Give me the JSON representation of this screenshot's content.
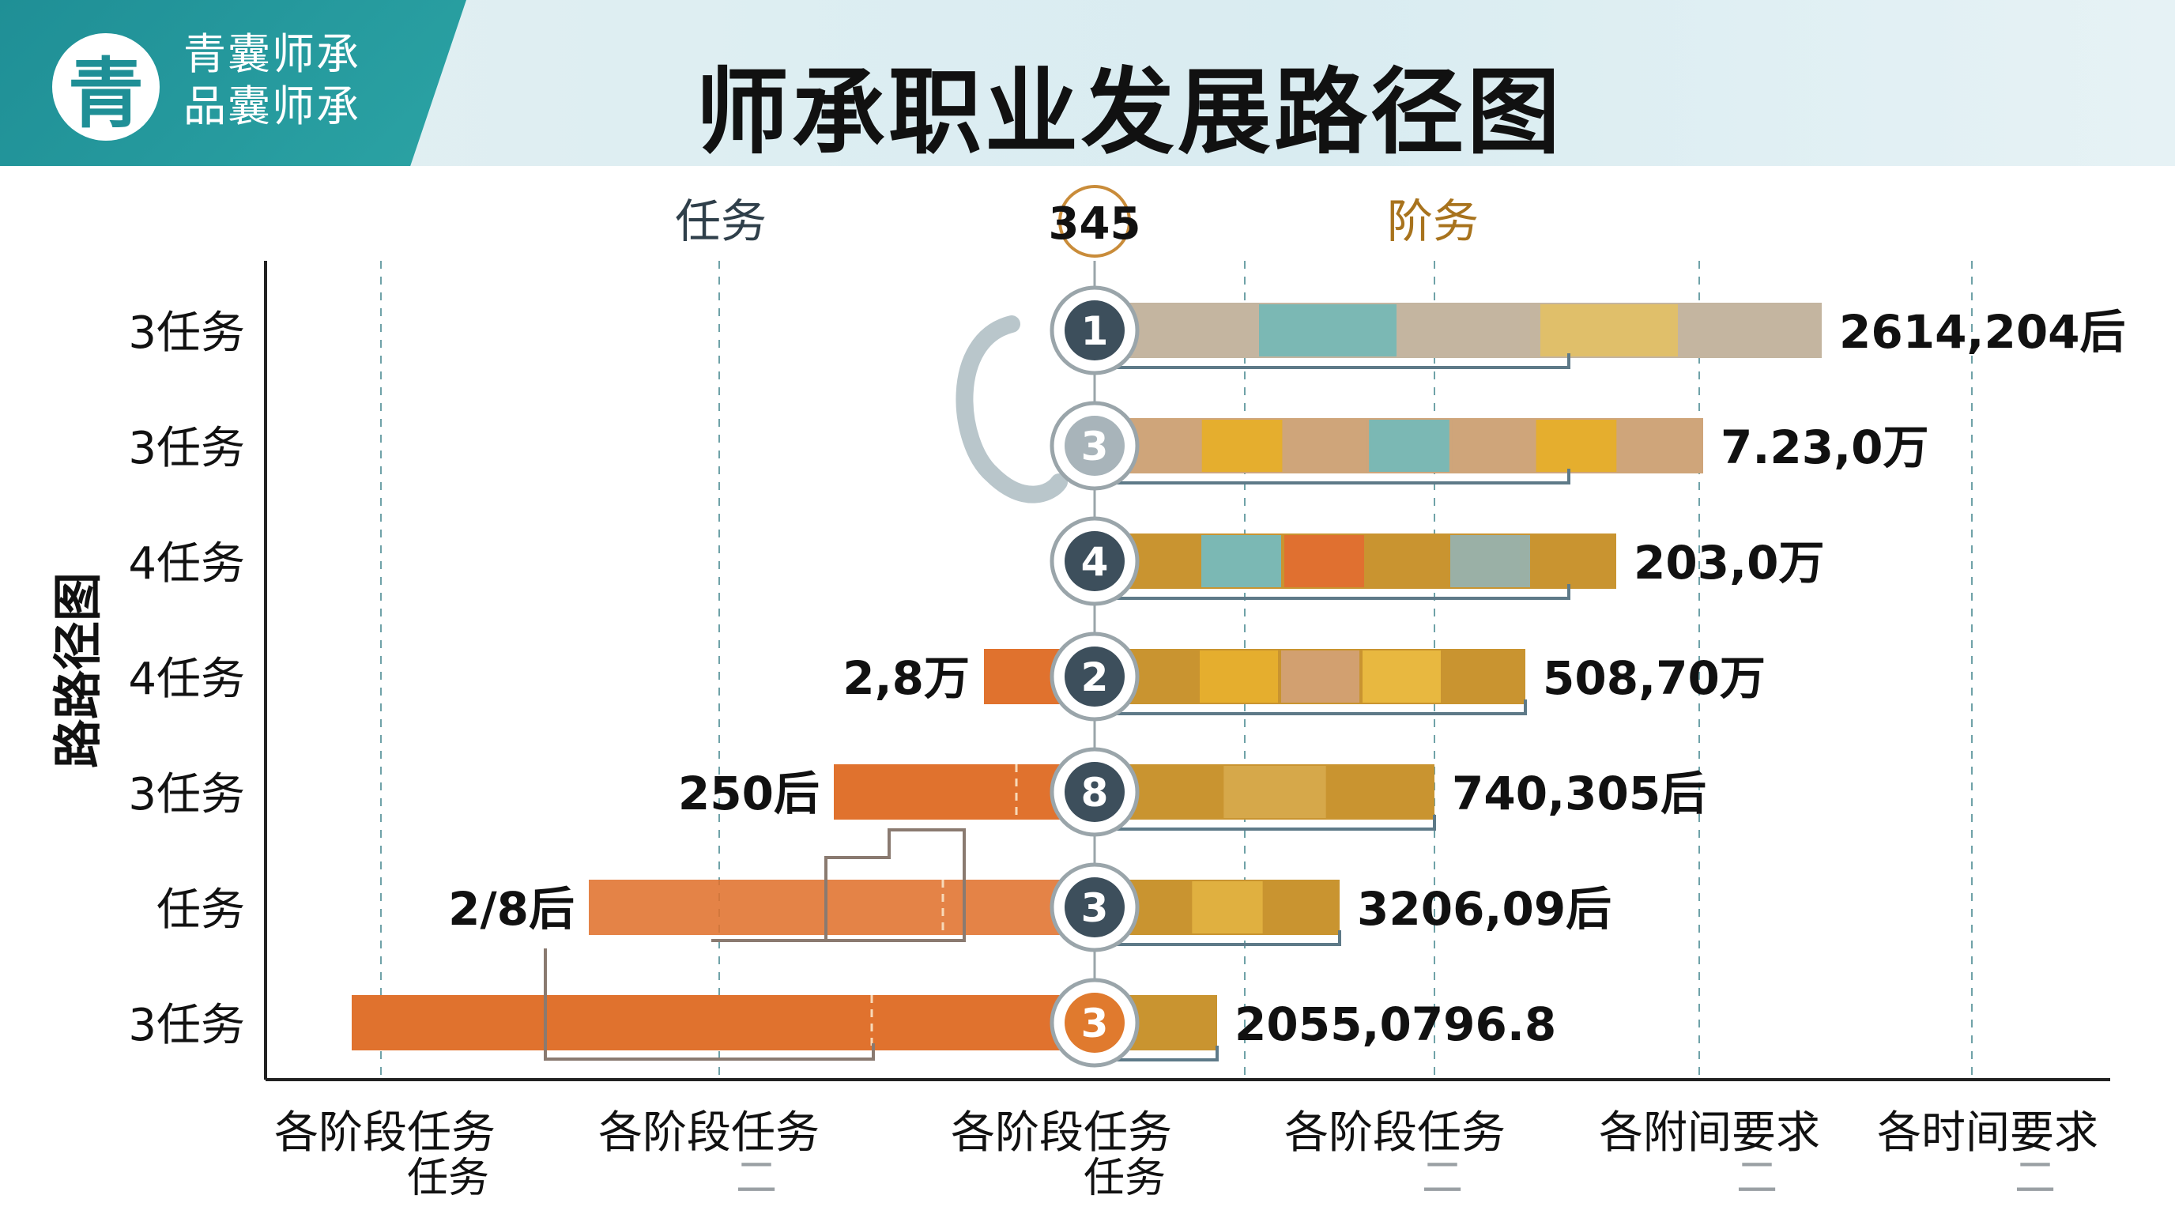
{
  "header": {
    "logo_glyph": "青",
    "brand_line1": "青囊师承",
    "brand_line2": "品囊师承",
    "title": "师承职业发展路径图"
  },
  "chart_data": {
    "type": "bar",
    "orientation": "horizontal-diverging",
    "title": "师承职业发展路径图",
    "ylabel": "路路径图",
    "top_labels": {
      "left": "任务",
      "center": "345",
      "right": "阶务"
    },
    "x_tick_labels": [
      {
        "line1": "各阶段任务",
        "line2": "任务"
      },
      {
        "line1": "各阶段任务",
        "line2": "二"
      },
      {
        "line1": "各阶段任务",
        "line2": "任务"
      },
      {
        "line1": "各阶段任务",
        "line2": "二"
      },
      {
        "line1": "各附间要求",
        "line2": "二"
      },
      {
        "line1": "各时间要求",
        "line2": "二"
      }
    ],
    "grid": "vertical-dashed",
    "rows": [
      {
        "category": "3任务",
        "marker": "1",
        "marker_color": "#3d4f5c",
        "left_value": 0,
        "left_label": "",
        "right_value": 920,
        "right_label": "2614,204后",
        "right_color": "#c4b5a0",
        "segment_colors": [
          "#c4b5a0",
          "#7bb8b4",
          "#c4b5a0",
          "#e0bf6a",
          "#c4b5a0"
        ]
      },
      {
        "category": "3任务",
        "marker": "3",
        "marker_color": "#a8b4ba",
        "left_value": 0,
        "left_label": "",
        "right_value": 770,
        "right_label": "7.23,0万",
        "right_color": "#cfa57a",
        "segment_colors": [
          "#cfa57a",
          "#e5ae2e",
          "#cfa57a",
          "#7bb8b4",
          "#cfa57a",
          "#e5ae2e",
          "#cfa57a"
        ]
      },
      {
        "category": "4任务",
        "marker": "4",
        "marker_color": "#3d4f5c",
        "left_value": 0,
        "left_label": "",
        "right_value": 660,
        "right_label": "203,0万",
        "right_color": "#c99430",
        "segment_colors": [
          "#c99430",
          "#7bb8b4",
          "#e07030",
          "#c99430",
          "#9ab0a6",
          "#c99430"
        ]
      },
      {
        "category": "4任务",
        "marker": "2",
        "marker_color": "#3d4f5c",
        "left_value": 140,
        "left_label": "2,8万",
        "right_value": 545,
        "right_label": "508,70万",
        "right_color": "#c99430",
        "segment_colors": [
          "#c99430",
          "#e5ae2e",
          "#d2a070",
          "#e8b840",
          "#c99430"
        ]
      },
      {
        "category": "3任务",
        "marker": "8",
        "marker_color": "#3d4f5c",
        "left_value": 330,
        "left_label": "250后",
        "right_value": 430,
        "right_label": "740,305后",
        "right_color": "#c99430",
        "segment_colors": [
          "#c99430",
          "#d6a84a",
          "#c99430"
        ]
      },
      {
        "category": "任务",
        "marker": "3",
        "marker_color": "#3d4f5c",
        "left_value": 640,
        "left_label": "2/8后",
        "right_value": 310,
        "right_label": "3206,09后",
        "right_color": "#c99430",
        "segment_colors": [
          "#c99430",
          "#e0b040",
          "#c99430"
        ]
      },
      {
        "category": "3任务",
        "marker": "3",
        "marker_color": "#e07a2e",
        "left_value": 940,
        "left_label": "",
        "right_value": 155,
        "right_label": "2055,0796.8",
        "right_color": "#c99430",
        "segment_colors": [
          "#c99430"
        ]
      }
    ]
  },
  "colors": {
    "axis": "#222222",
    "grid": "#6fa2a8",
    "left_bar": "#e0722e",
    "connector": "#5e7a88"
  }
}
